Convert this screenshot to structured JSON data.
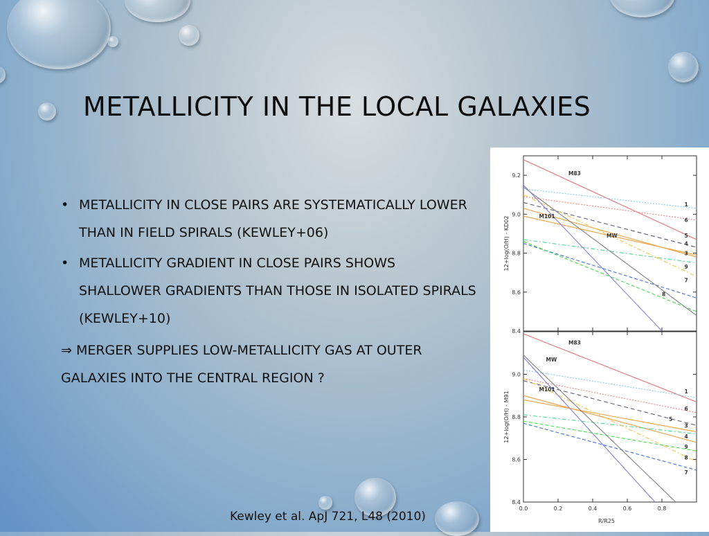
{
  "slide": {
    "title": "METALLICITY IN THE LOCAL GALAXIES",
    "bullets": [
      "Metallicity in close pairs are systematically lower than in field spirals (Kewley+06)",
      "Metallicity gradient in close pairs shows shallower gradients than those in isolated spirals (Kewley+10)"
    ],
    "bullet_symbol": "•",
    "conclusion": "⇒ Merger supplies low-metallicity gas at outer galaxies into the central region ?",
    "citation": "Kewley et al. ApJ 721, L48 (2010)"
  },
  "chart_data": [
    {
      "type": "line",
      "ylabel": "12+log(O/H) - KD02",
      "ylim": [
        8.4,
        9.3
      ],
      "xlim": [
        0.0,
        1.0
      ],
      "yticks": [
        "8.4",
        "8.6",
        "8.8",
        "9.0",
        "9.2"
      ],
      "series": [
        {
          "name": "M83",
          "color": "#e87070",
          "dash": "",
          "points": [
            [
              0.0,
              9.28
            ],
            [
              1.0,
              8.87
            ]
          ]
        },
        {
          "name": "1",
          "color": "#7fc8f0",
          "dash": "2,2",
          "points": [
            [
              0.0,
              9.13
            ],
            [
              1.0,
              9.03
            ]
          ]
        },
        {
          "name": "6",
          "color": "#f08080",
          "dash": "2,2",
          "points": [
            [
              0.0,
              9.09
            ],
            [
              1.0,
              8.97
            ]
          ]
        },
        {
          "name": "5",
          "color": "#555577",
          "dash": "6,4",
          "points": [
            [
              0.0,
              9.06
            ],
            [
              1.0,
              8.83
            ]
          ]
        },
        {
          "name": "M101",
          "color": "#f0a040",
          "dash": "",
          "points": [
            [
              0.0,
              9.03
            ],
            [
              1.0,
              8.78
            ]
          ]
        },
        {
          "name": "4",
          "color": "#f0a040",
          "dash": "",
          "points": [
            [
              0.0,
              8.99
            ],
            [
              1.0,
              8.79
            ]
          ]
        },
        {
          "name": "3",
          "color": "#50d890",
          "dash": "6,3,2,3",
          "points": [
            [
              0.0,
              8.87
            ],
            [
              1.0,
              8.75
            ]
          ]
        },
        {
          "name": "9",
          "color": "#f8c040",
          "dash": "6,3,2,3",
          "points": [
            [
              0.0,
              9.1
            ],
            [
              1.0,
              8.68
            ]
          ]
        },
        {
          "name": "7",
          "color": "#4070e0",
          "dash": "5,3",
          "points": [
            [
              0.0,
              8.85
            ],
            [
              1.0,
              8.57
            ]
          ]
        },
        {
          "name": "8",
          "color": "#40e040",
          "dash": "5,3",
          "points": [
            [
              0.0,
              8.86
            ],
            [
              1.0,
              8.5
            ]
          ]
        },
        {
          "name": "MW",
          "color": "#808080",
          "dash": "",
          "points": [
            [
              0.0,
              9.14
            ],
            [
              1.0,
              8.48
            ]
          ]
        },
        {
          "name": "",
          "color": "#8080e0",
          "dash": "",
          "points": [
            [
              0.0,
              9.15
            ],
            [
              0.8,
              8.4
            ]
          ]
        }
      ],
      "annotations": [
        {
          "text": "M83",
          "x": 0.26,
          "y": 9.2
        },
        {
          "text": "M101",
          "x": 0.09,
          "y": 8.98
        },
        {
          "text": "MW",
          "x": 0.48,
          "y": 8.88
        },
        {
          "text": "1",
          "x": 0.93,
          "y": 9.04
        },
        {
          "text": "6",
          "x": 0.93,
          "y": 8.96
        },
        {
          "text": "5",
          "x": 0.93,
          "y": 8.88
        },
        {
          "text": "4",
          "x": 0.93,
          "y": 8.84
        },
        {
          "text": "3",
          "x": 0.93,
          "y": 8.79
        },
        {
          "text": "9",
          "x": 0.93,
          "y": 8.72
        },
        {
          "text": "7",
          "x": 0.93,
          "y": 8.65
        },
        {
          "text": "8",
          "x": 0.8,
          "y": 8.58
        }
      ]
    },
    {
      "type": "line",
      "ylabel": "12+log(O/H) - M91",
      "xlabel": "R/R25",
      "ylim": [
        8.4,
        9.2
      ],
      "xlim": [
        0.0,
        1.0
      ],
      "xticks": [
        "0.0",
        "0.2",
        "0.4",
        "0.6",
        "0.8"
      ],
      "yticks": [
        "8.4",
        "8.6",
        "8.8",
        "9.0"
      ],
      "series": [
        {
          "name": "M83",
          "color": "#e87070",
          "dash": "",
          "points": [
            [
              0.0,
              9.19
            ],
            [
              1.0,
              8.87
            ]
          ]
        },
        {
          "name": "1",
          "color": "#7fc8f0",
          "dash": "2,2",
          "points": [
            [
              0.0,
              9.02
            ],
            [
              1.0,
              8.89
            ]
          ]
        },
        {
          "name": "6",
          "color": "#f08080",
          "dash": "2,2",
          "points": [
            [
              0.0,
              8.98
            ],
            [
              1.0,
              8.82
            ]
          ]
        },
        {
          "name": "5",
          "color": "#555577",
          "dash": "6,4",
          "points": [
            [
              0.0,
              8.97
            ],
            [
              1.0,
              8.76
            ]
          ]
        },
        {
          "name": "M101",
          "color": "#f0a040",
          "dash": "",
          "points": [
            [
              0.0,
              8.9
            ],
            [
              1.0,
              8.68
            ]
          ]
        },
        {
          "name": "4",
          "color": "#f0a040",
          "dash": "",
          "points": [
            [
              0.0,
              8.88
            ],
            [
              1.0,
              8.73
            ]
          ]
        },
        {
          "name": "3",
          "color": "#50d890",
          "dash": "6,3,2,3",
          "points": [
            [
              0.0,
              8.81
            ],
            [
              1.0,
              8.72
            ]
          ]
        },
        {
          "name": "9",
          "color": "#f8c040",
          "dash": "6,3,2,3",
          "points": [
            [
              0.0,
              8.98
            ],
            [
              1.0,
              8.59
            ]
          ]
        },
        {
          "name": "8",
          "color": "#40e040",
          "dash": "5,3",
          "points": [
            [
              0.0,
              8.78
            ],
            [
              1.0,
              8.64
            ]
          ]
        },
        {
          "name": "7",
          "color": "#4070e0",
          "dash": "5,3",
          "points": [
            [
              0.0,
              8.77
            ],
            [
              1.0,
              8.55
            ]
          ]
        },
        {
          "name": "MW",
          "color": "#808080",
          "dash": "",
          "points": [
            [
              0.0,
              9.09
            ],
            [
              0.88,
              8.4
            ]
          ]
        },
        {
          "name": "",
          "color": "#8080e0",
          "dash": "",
          "points": [
            [
              0.0,
              9.08
            ],
            [
              0.76,
              8.4
            ]
          ]
        }
      ],
      "annotations": [
        {
          "text": "M83",
          "x": 0.26,
          "y": 9.14
        },
        {
          "text": "MW",
          "x": 0.13,
          "y": 9.06
        },
        {
          "text": "M101",
          "x": 0.09,
          "y": 8.92
        },
        {
          "text": "5",
          "x": 0.84,
          "y": 8.78
        },
        {
          "text": "1",
          "x": 0.93,
          "y": 8.91
        },
        {
          "text": "6",
          "x": 0.93,
          "y": 8.83
        },
        {
          "text": "3",
          "x": 0.93,
          "y": 8.75
        },
        {
          "text": "4",
          "x": 0.93,
          "y": 8.7
        },
        {
          "text": "9",
          "x": 0.93,
          "y": 8.65
        },
        {
          "text": "8",
          "x": 0.93,
          "y": 8.6
        },
        {
          "text": "7",
          "x": 0.93,
          "y": 8.53
        }
      ]
    }
  ]
}
